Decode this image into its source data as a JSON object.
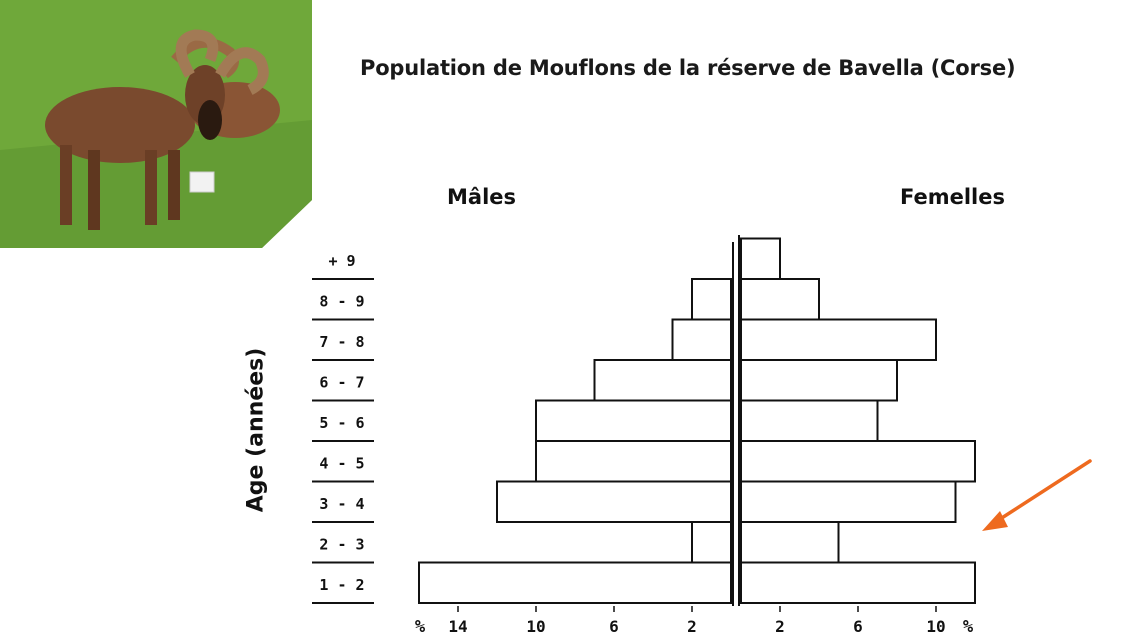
{
  "photo": {
    "icon": "mouflon-ram-photo",
    "colors": {
      "grass": "#6fa83a",
      "coat": "#7a4a2e"
    }
  },
  "arrow": {
    "icon": "arrow-pointer",
    "color": "#ee6a1f"
  },
  "chart_data": {
    "type": "bar",
    "title": "Population de Mouflons de la réserve de Bavella (Corse)",
    "ylabel": "Age (années)",
    "categories": [
      "1 - 2",
      "2 - 3",
      "3 - 4",
      "4 - 5",
      "5 - 6",
      "6 - 7",
      "7 - 8",
      "8 - 9",
      "+ 9"
    ],
    "series": [
      {
        "name": "Mâles",
        "values": [
          16,
          2,
          12,
          10,
          10,
          7,
          3,
          2,
          0
        ]
      },
      {
        "name": "Femelles",
        "values": [
          12,
          5,
          11,
          12,
          7,
          8,
          10,
          4,
          2
        ]
      }
    ],
    "x_ticks_left": [
      "14",
      "10",
      "6",
      "2"
    ],
    "x_ticks_right": [
      "2",
      "6",
      "10"
    ],
    "unit_label": "%",
    "xlim": [
      0,
      16
    ]
  }
}
